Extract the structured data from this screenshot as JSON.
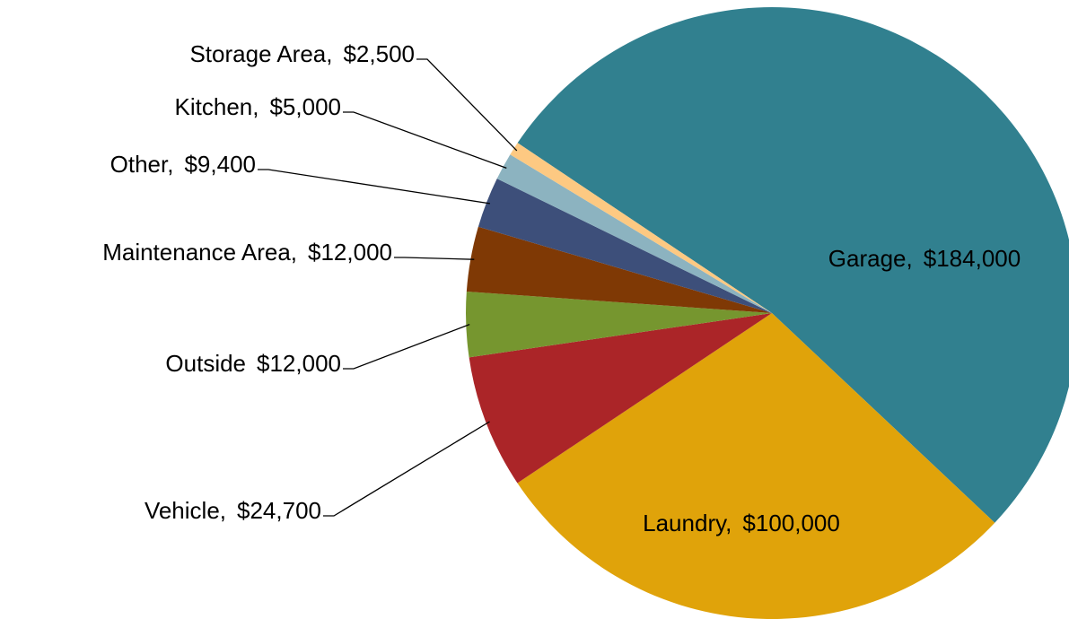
{
  "chart_data": {
    "type": "pie",
    "categories": [
      "Garage,",
      "Laundry,",
      "Vehicle,",
      "Outside",
      "Maintenance Area,",
      "Other,",
      "Kitchen,",
      "Storage Area,"
    ],
    "values": [
      184000,
      100000,
      24700,
      12000,
      12000,
      9400,
      5000,
      2500
    ],
    "value_labels": [
      "$184,000",
      "$100,000",
      "$24,700",
      "$12,000",
      "$12,000",
      "$9,400",
      "$5,000",
      "$2,500"
    ],
    "colors": [
      "#31808f",
      "#e0a30a",
      "#ab2528",
      "#76962f",
      "#7f3905",
      "#3d4f7a",
      "#8cb3c0",
      "#fdc982"
    ]
  }
}
